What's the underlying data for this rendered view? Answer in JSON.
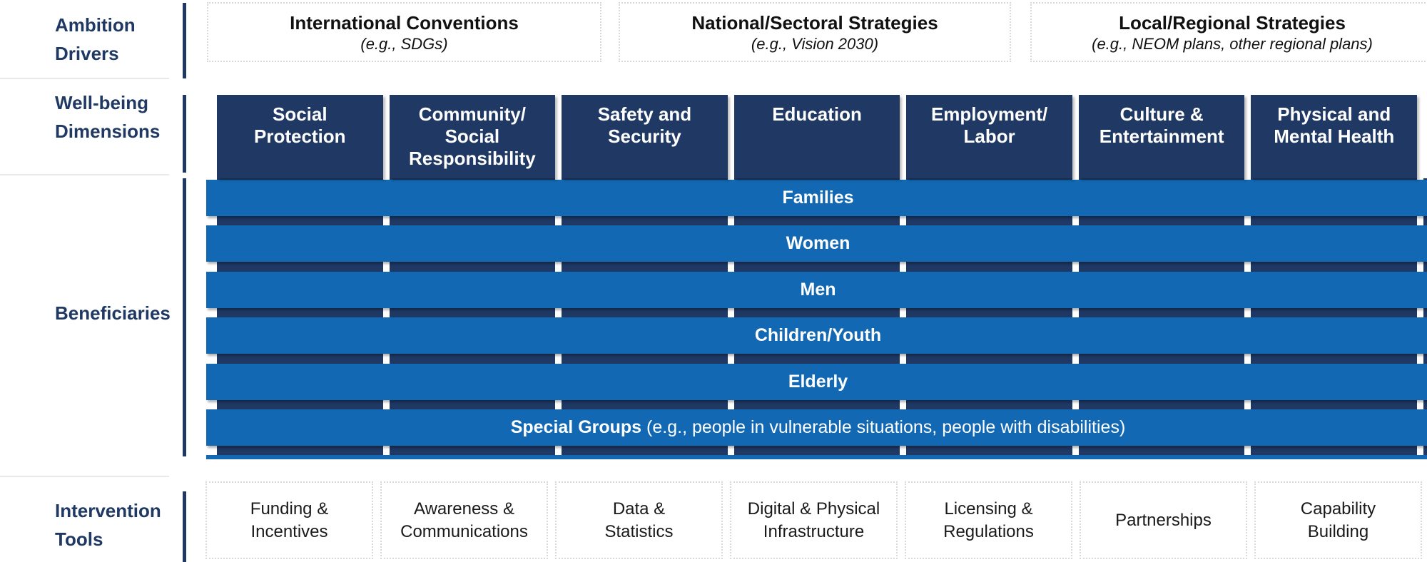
{
  "palette": {
    "navy": "#1F3864",
    "blue": "#1268B3",
    "label-navy": "#1F3864",
    "divider": "#E9E9E9",
    "box-border": "#D9D9D9"
  },
  "sidebar": {
    "sections": [
      {
        "label": "Ambition Drivers"
      },
      {
        "label": "Well-being Dimensions"
      },
      {
        "label": "Beneficiaries"
      },
      {
        "label": "Intervention Tools"
      }
    ]
  },
  "ambition_drivers": {
    "boxes": [
      {
        "title": "International Conventions",
        "example": "(e.g., SDGs)"
      },
      {
        "title": "National/Sectoral Strategies",
        "example": "(e.g., Vision 2030)"
      },
      {
        "title": "Local/Regional Strategies",
        "example": "(e.g., NEOM plans, other regional plans)"
      }
    ]
  },
  "wellbeing_dimensions": {
    "columns": [
      "Social\nProtection",
      "Community/\nSocial\nResponsibility",
      "Safety and\nSecurity",
      "Education",
      "Employment/\nLabor",
      "Culture &\nEntertainment",
      "Physical and\nMental Health"
    ]
  },
  "beneficiaries": {
    "rows": [
      "Families",
      "Women",
      "Men",
      "Children/Youth",
      "Elderly"
    ],
    "special_row": {
      "bold": "Special Groups",
      "rest": " (e.g., people in vulnerable situations, people with disabilities)"
    }
  },
  "intervention_tools": {
    "boxes": [
      "Funding &\nIncentives",
      "Awareness &\nCommunications",
      "Data &\nStatistics",
      "Digital & Physical\nInfrastructure",
      "Licensing &\nRegulations",
      "Partnerships",
      "Capability\nBuilding"
    ]
  }
}
